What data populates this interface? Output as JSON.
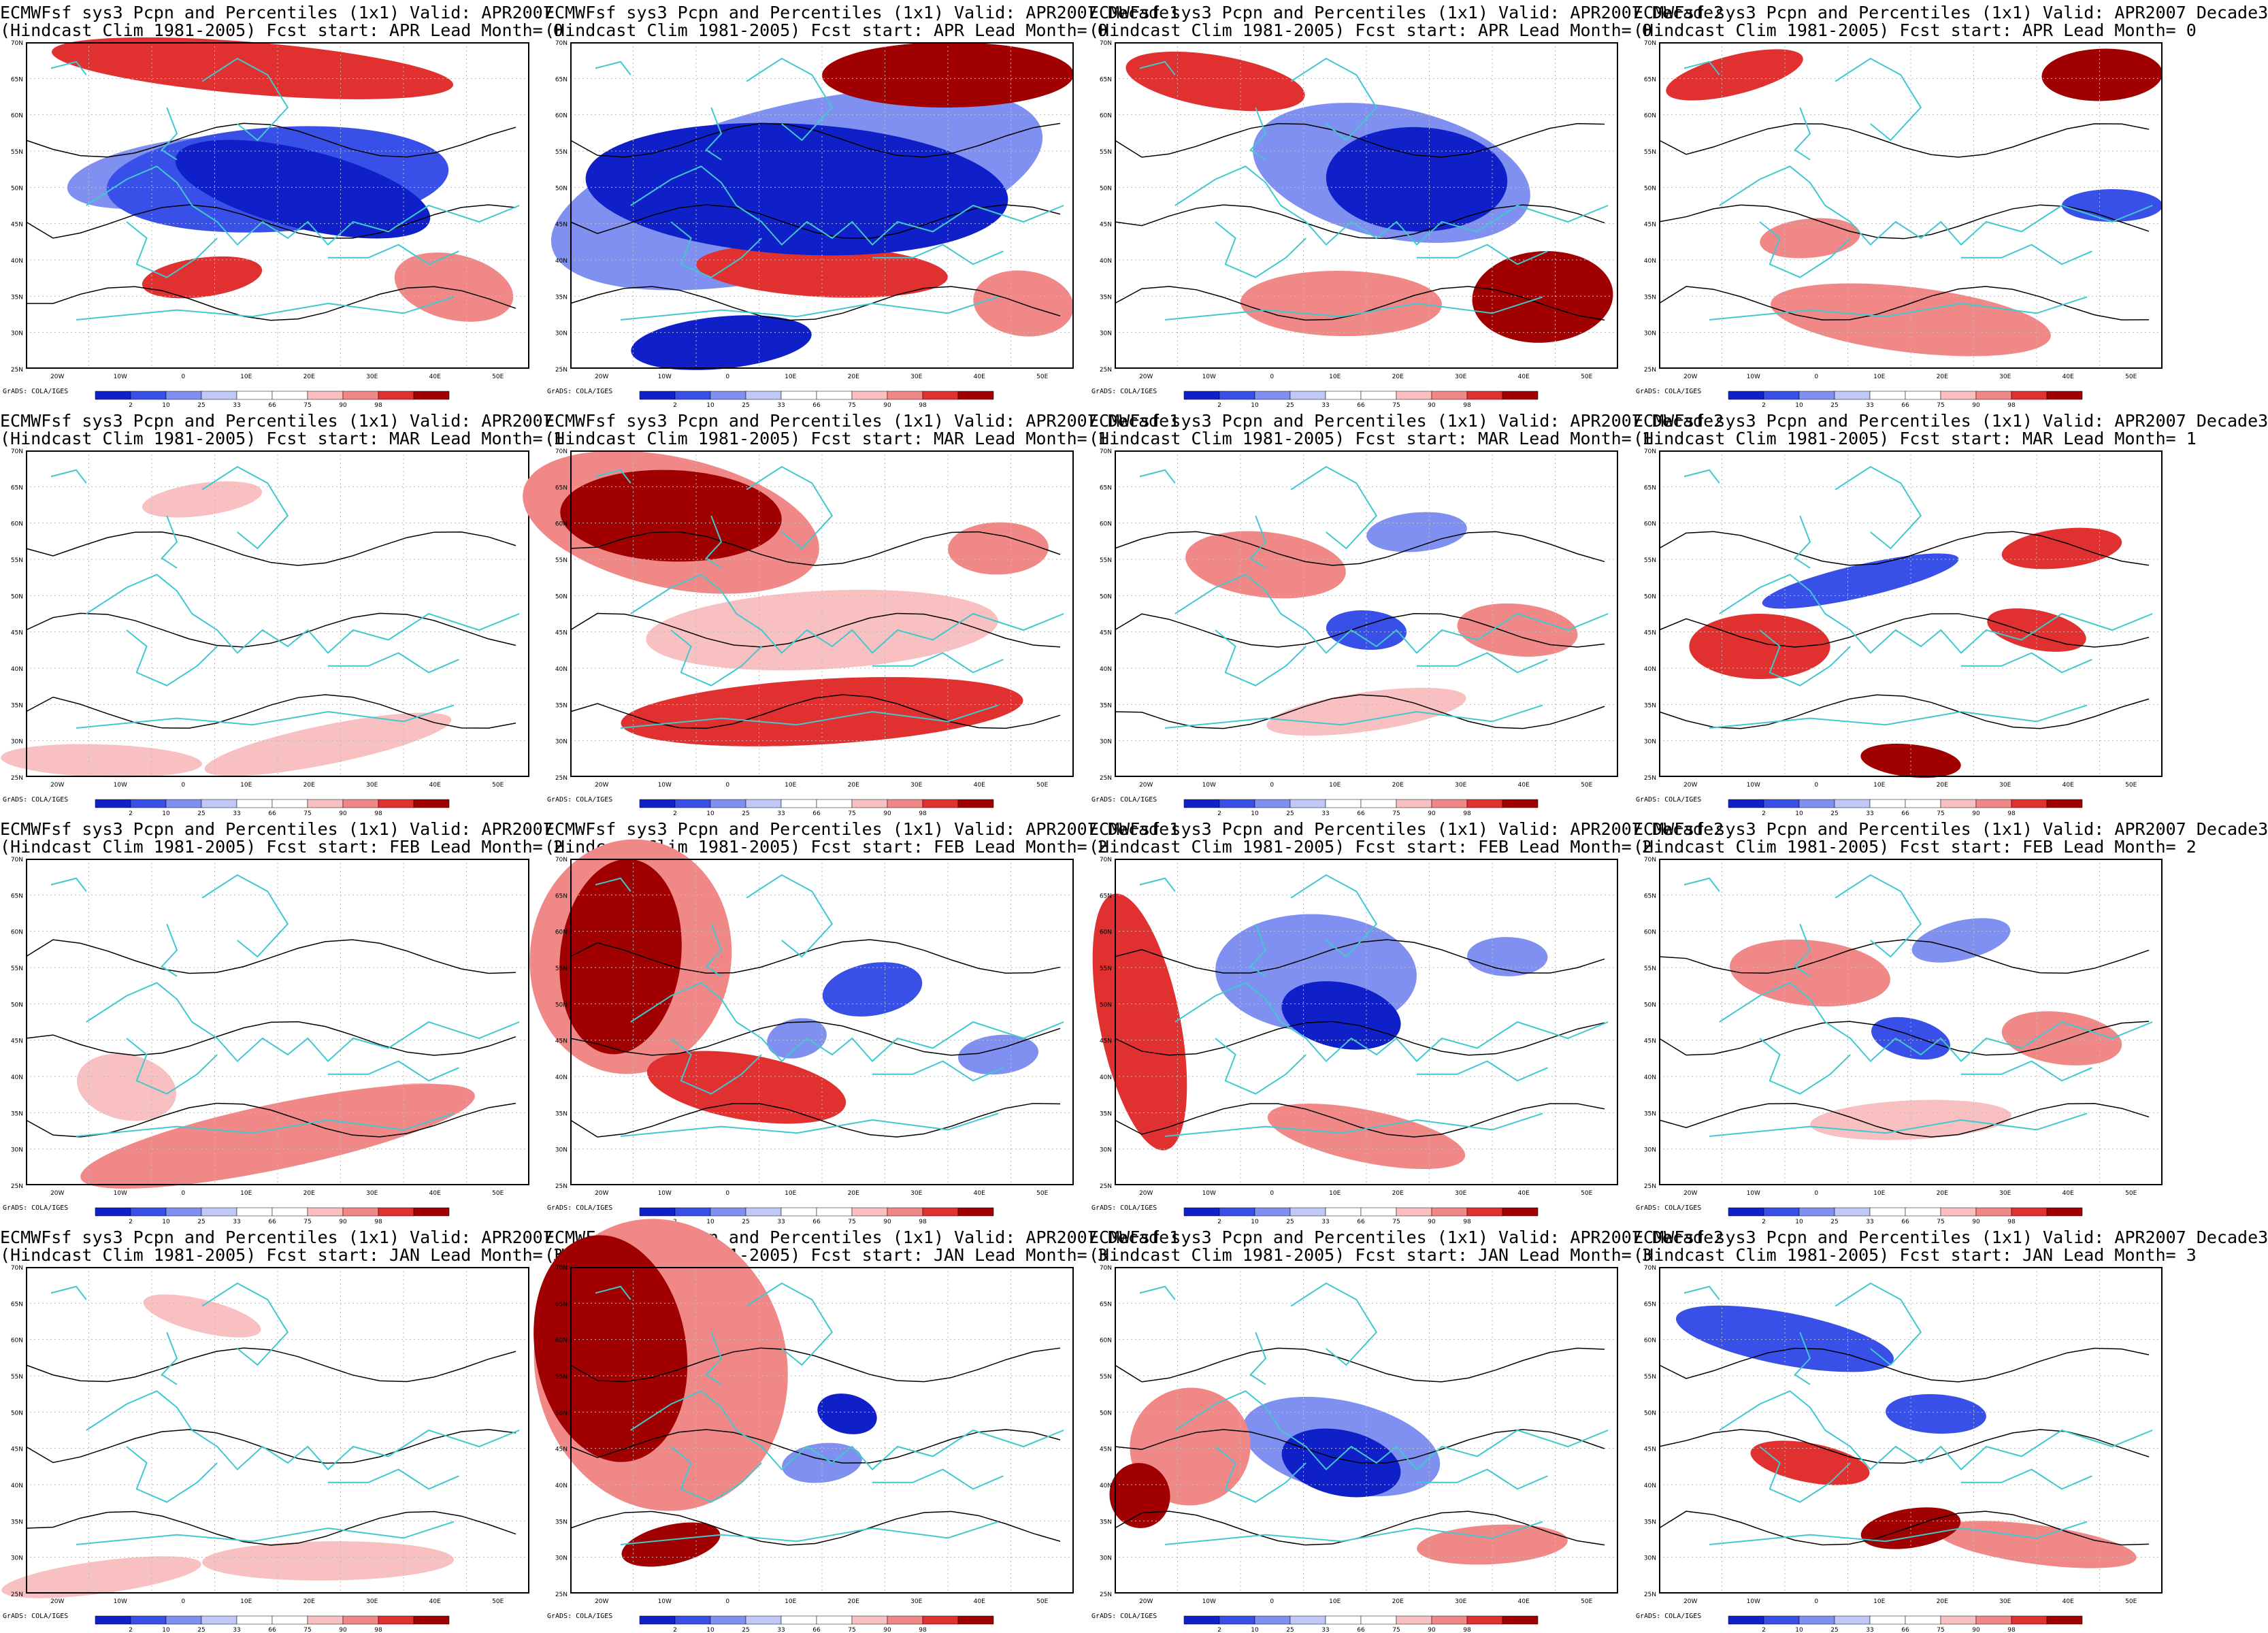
{
  "grid": {
    "rows": 4,
    "cols": 4
  },
  "palette": {
    "below": [
      "#1020c8",
      "#3850e8",
      "#8090f0",
      "#c0c8f8"
    ],
    "neutral": "#ffffff",
    "above": [
      "#f8c0c0",
      "#f08888",
      "#e03030",
      "#a00000"
    ],
    "coast": "#40c8d0",
    "contour": "#000000"
  },
  "map": {
    "lat_labels": [
      "70N",
      "65N",
      "60N",
      "55N",
      "50N",
      "45N",
      "40N",
      "35N",
      "30N",
      "25N"
    ],
    "lon_labels": [
      "20W",
      "10W",
      "0",
      "10E",
      "20E",
      "30E",
      "40E",
      "50E"
    ],
    "colorbar_ticks": [
      "2",
      "10",
      "25",
      "33",
      "66",
      "75",
      "90",
      "98"
    ],
    "credit": "GrADS: COLA/IGES"
  },
  "panels": [
    {
      "title1": "ECMWFsf sys3  Pcpn and Percentiles (1x1) Valid: APR2007",
      "title2": "(Hindcast Clim 1981-2005) Fcst start: APR  Lead Month= 0",
      "anomaly": "mixed-below-center"
    },
    {
      "title1": "ECMWFsf sys3  Pcpn and Percentiles (1x1) Valid: APR2007 Decade1",
      "title2": "(Hindcast Clim 1981-2005) Fcst start: APR  Lead Month= 0",
      "anomaly": "strong-below-center"
    },
    {
      "title1": "ECMWFsf sys3  Pcpn and Percentiles (1x1) Valid: APR2007 Decade2",
      "title2": "(Hindcast Clim 1981-2005) Fcst start: APR  Lead Month= 0",
      "anomaly": "below-center-above-edges"
    },
    {
      "title1": "ECMWFsf sys3  Pcpn and Percentiles (1x1) Valid: APR2007 Decade3",
      "title2": "(Hindcast Clim 1981-2005) Fcst start: APR  Lead Month= 0",
      "anomaly": "patchy-above"
    },
    {
      "title1": "ECMWFsf sys3  Pcpn and Percentiles (1x1) Valid: APR2007",
      "title2": "(Hindcast Clim 1981-2005) Fcst start: MAR  Lead Month= 1",
      "anomaly": "weak"
    },
    {
      "title1": "ECMWFsf sys3  Pcpn and Percentiles (1x1) Valid: APR2007 Decade1",
      "title2": "(Hindcast Clim 1981-2005) Fcst start: MAR  Lead Month= 1",
      "anomaly": "above-north-south"
    },
    {
      "title1": "ECMWFsf sys3  Pcpn and Percentiles (1x1) Valid: APR2007 Decade2",
      "title2": "(Hindcast Clim 1981-2005) Fcst start: MAR  Lead Month= 1",
      "anomaly": "patchy-mixed"
    },
    {
      "title1": "ECMWFsf sys3  Pcpn and Percentiles (1x1) Valid: APR2007 Decade3",
      "title2": "(Hindcast Clim 1981-2005) Fcst start: MAR  Lead Month= 1",
      "anomaly": "patchy-mixed-red"
    },
    {
      "title1": "ECMWFsf sys3  Pcpn and Percentiles (1x1) Valid: APR2007",
      "title2": "(Hindcast Clim 1981-2005) Fcst start: FEB  Lead Month= 2",
      "anomaly": "weak-above-south"
    },
    {
      "title1": "ECMWFsf sys3  Pcpn and Percentiles (1x1) Valid: APR2007 Decade1",
      "title2": "(Hindcast Clim 1981-2005) Fcst start: FEB  Lead Month= 2",
      "anomaly": "above-west"
    },
    {
      "title1": "ECMWFsf sys3  Pcpn and Percentiles (1x1) Valid: APR2007 Decade2",
      "title2": "(Hindcast Clim 1981-2005) Fcst start: FEB  Lead Month= 2",
      "anomaly": "below-center-above-west"
    },
    {
      "title1": "ECMWFsf sys3  Pcpn and Percentiles (1x1) Valid: APR2007 Decade3",
      "title2": "(Hindcast Clim 1981-2005) Fcst start: FEB  Lead Month= 2",
      "anomaly": "patchy-mixed"
    },
    {
      "title1": "ECMWFsf sys3  Pcpn and Percentiles (1x1) Valid: APR2007",
      "title2": "(Hindcast Clim 1981-2005) Fcst start: JAN  Lead Month= 3",
      "anomaly": "weak"
    },
    {
      "title1": "ECMWFsf sys3  Pcpn and Percentiles (1x1) Valid: APR2007 Decade1",
      "title2": "(Hindcast Clim 1981-2005) Fcst start: JAN  Lead Month= 3",
      "anomaly": "above-west-strong"
    },
    {
      "title1": "ECMWFsf sys3  Pcpn and Percentiles (1x1) Valid: APR2007 Decade2",
      "title2": "(Hindcast Clim 1981-2005) Fcst start: JAN  Lead Month= 3",
      "anomaly": "below-south-center"
    },
    {
      "title1": "ECMWFsf sys3  Pcpn and Percentiles (1x1) Valid: APR2007 Decade3",
      "title2": "(Hindcast Clim 1981-2005) Fcst start: JAN  Lead Month= 3",
      "anomaly": "below-north-above-south"
    }
  ]
}
